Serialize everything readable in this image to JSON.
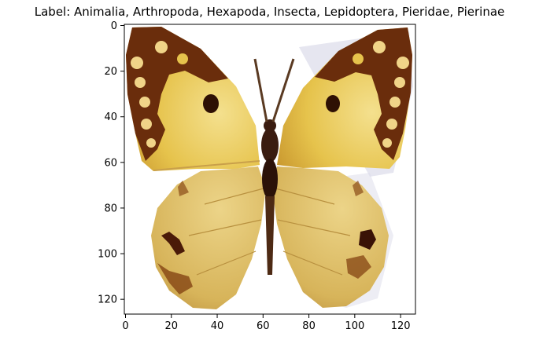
{
  "figure": {
    "title": "Label: Animalia, Arthropoda, Hexapoda, Insecta, Lepidoptera, Pieridae, Pierinae"
  },
  "axes": {
    "x_ticks": [
      "0",
      "20",
      "40",
      "60",
      "80",
      "100",
      "120"
    ],
    "y_ticks": [
      "0",
      "20",
      "40",
      "60",
      "80",
      "100",
      "120"
    ],
    "x_range": [
      0,
      127
    ],
    "y_range": [
      0,
      127
    ]
  },
  "image": {
    "subject": "butterfly",
    "colors": {
      "wing_yellow": "#e8c44a",
      "wing_pale": "#f1dc8c",
      "hind_wing": "#d9b55a",
      "dark_brown": "#4a1a08",
      "medium_brown": "#8a4b18",
      "body": "#3a1c10",
      "shadow": "#c9c9dd"
    }
  }
}
